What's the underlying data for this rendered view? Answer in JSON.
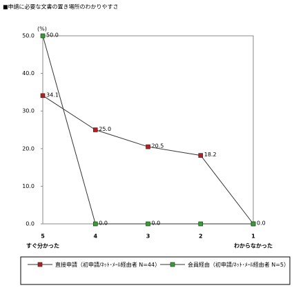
{
  "chart_data": {
    "type": "line",
    "title": "■申請に必要な文書の置き場所のわかりやすさ",
    "y_label": "(%)",
    "categories": [
      "5",
      "4",
      "3",
      "2",
      "1"
    ],
    "category_notes": {
      "first": "すぐ分かった",
      "last": "わからなかった"
    },
    "series": [
      {
        "name": "直接申請（初申請/ﾈｯﾄ･ﾒｰﾙ経由者 N=44）",
        "color": "#b22222",
        "values": [
          34.1,
          25.0,
          20.5,
          18.2,
          0.0
        ],
        "value_labels": [
          "34.1",
          "25.0",
          "20.5",
          "18.2",
          "0.0"
        ]
      },
      {
        "name": "会員経由（初申請/ﾈｯﾄ･ﾒｰﾙ経由者 N=5）",
        "color": "#33a033",
        "values": [
          50.0,
          0.0,
          0.0,
          0.0,
          0.0
        ],
        "value_labels": [
          "50.0",
          "0.0",
          "0.0",
          null,
          null
        ]
      }
    ],
    "ylim": [
      0,
      50
    ],
    "yticks": [
      {
        "value": 0,
        "label": "0.0"
      },
      {
        "value": 10,
        "label": "10.0"
      },
      {
        "value": 20,
        "label": "20.0"
      },
      {
        "value": 30,
        "label": "30.0"
      },
      {
        "value": 40,
        "label": "40.0"
      },
      {
        "value": 50,
        "label": "50.0"
      }
    ]
  }
}
